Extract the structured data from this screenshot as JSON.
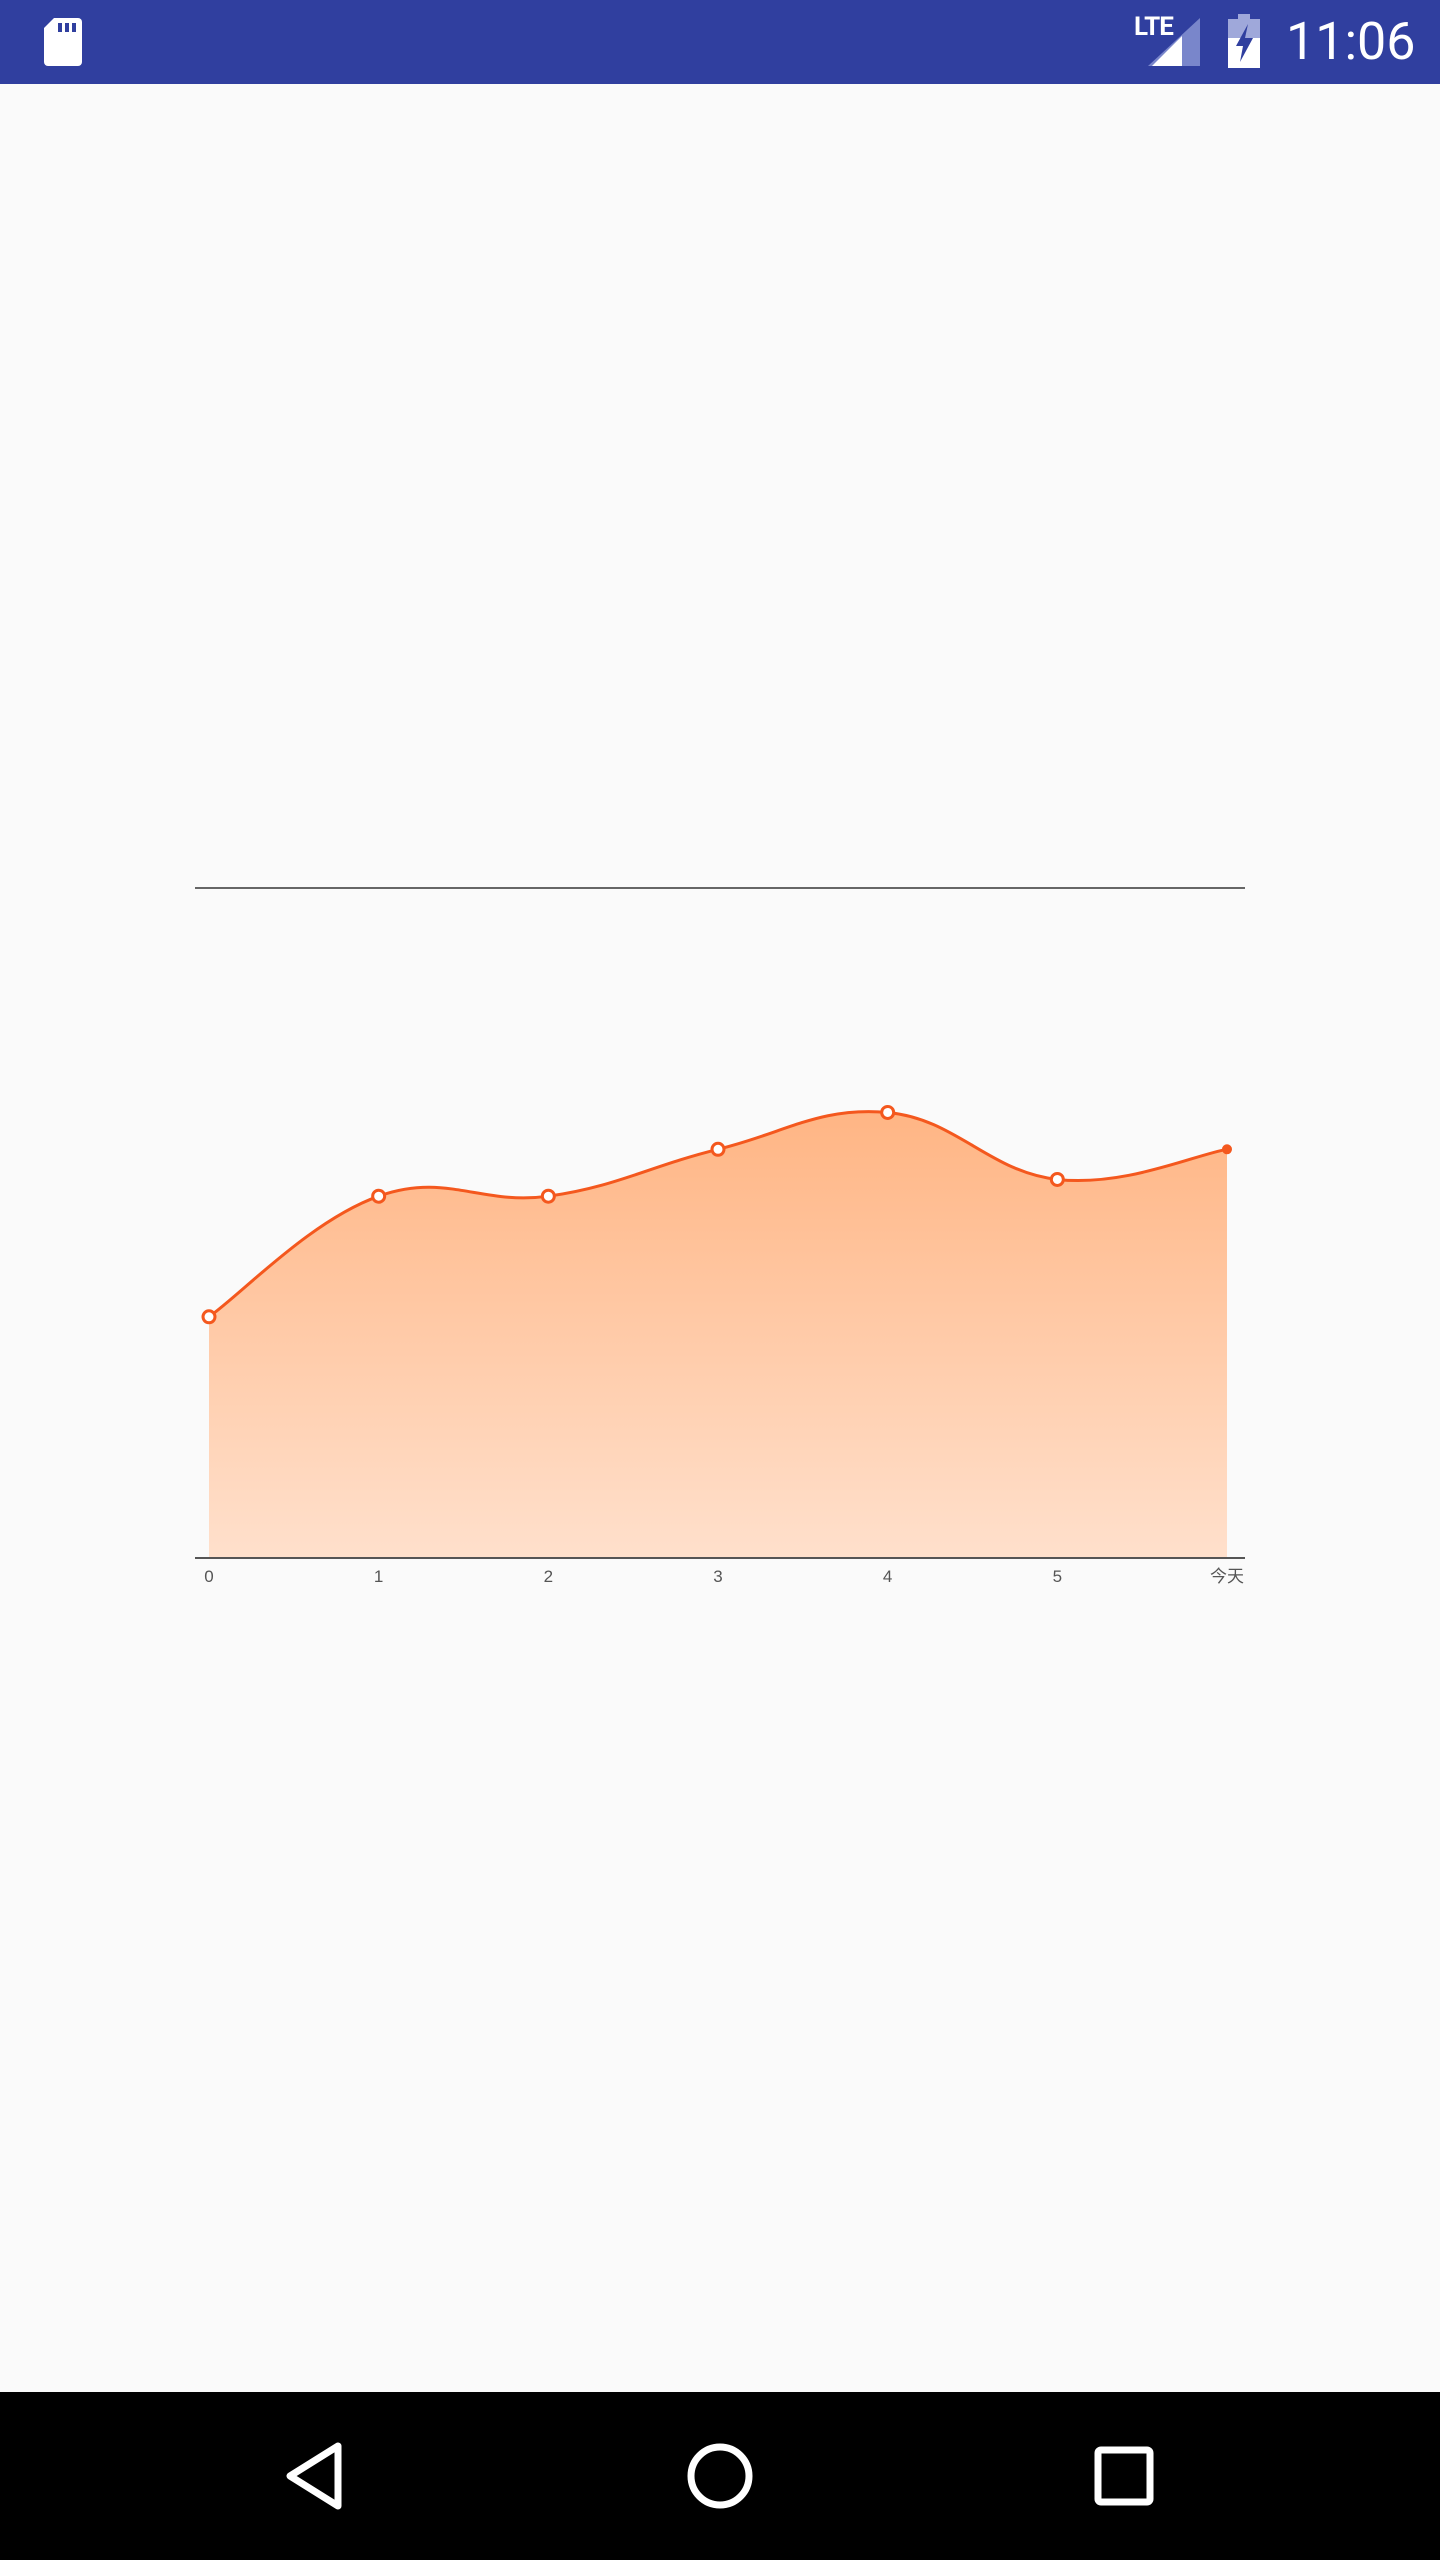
{
  "status_bar": {
    "background": "#303f9f",
    "network_label": "LTE",
    "time": "11:06",
    "icons": [
      "sd-card-icon",
      "cell-signal-icon",
      "battery-charging-icon"
    ]
  },
  "chart_data": {
    "type": "area",
    "x": [
      "0",
      "1",
      "2",
      "3",
      "4",
      "5",
      "今天"
    ],
    "series": [
      {
        "values": [
          36,
          54,
          54,
          61,
          66.5,
          56.5,
          61
        ],
        "color": "#f4581e",
        "fill_top": "#ffb584",
        "fill_bottom": "#ffe0cc"
      }
    ],
    "ylim": [
      0,
      100
    ],
    "markers": "hollow circles (last point filled)",
    "grid": false,
    "top_line": true
  },
  "nav_bar": {
    "background": "#000000",
    "buttons": [
      "back-icon",
      "home-icon",
      "recents-icon"
    ]
  }
}
